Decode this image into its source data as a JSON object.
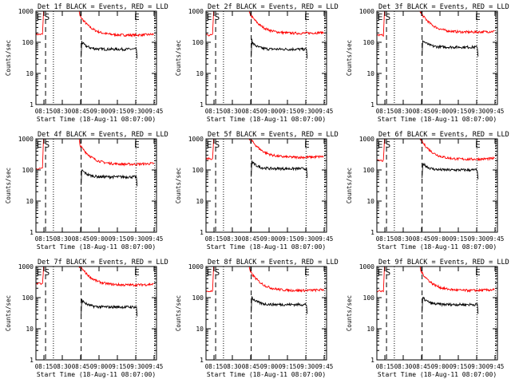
{
  "chart_data": [
    {
      "type": "line",
      "title": "Det 1f BLACK = Events, RED = LLD",
      "xlabel": "Start Time (18-Aug-11 08:07:00)",
      "ylabel": "Counts/sec",
      "yscale": "log",
      "ylim": [
        1,
        1000
      ],
      "xticks": [
        "08:15",
        "08:30",
        "08:45",
        "09:00",
        "09:15",
        "09:30",
        "09:45"
      ],
      "yticks": [
        "1",
        "10",
        "100",
        "1000"
      ],
      "markers": [
        "E",
        "S",
        "E"
      ],
      "series": [
        {
          "color": "#ff0000",
          "level_after": 200,
          "level_before": 180,
          "spike": 1000
        },
        {
          "color": "#000000",
          "level_after": 60,
          "spike": 110
        }
      ]
    },
    {
      "type": "line",
      "title": "Det 2f BLACK = Events, RED = LLD",
      "xlabel": "Start Time (18-Aug-11 08:07:00)",
      "ylabel": "Counts/sec",
      "yscale": "log",
      "ylim": [
        1,
        1000
      ],
      "xticks": [
        "08:15",
        "08:30",
        "08:45",
        "09:00",
        "09:15",
        "09:30",
        "09:45"
      ],
      "yticks": [
        "1",
        "10",
        "100",
        "1000"
      ],
      "markers": [
        "E",
        "S",
        "E"
      ],
      "series": [
        {
          "color": "#ff0000",
          "level_after": 230,
          "level_before": 170,
          "spike": 1000
        },
        {
          "color": "#000000",
          "level_after": 60,
          "spike": 130
        }
      ]
    },
    {
      "type": "line",
      "title": "Det 3f BLACK = Events, RED = LLD",
      "xlabel": "Start Time (18-Aug-11 08:07:00)",
      "ylabel": "Counts/sec",
      "yscale": "log",
      "ylim": [
        1,
        1000
      ],
      "xticks": [
        "08:15",
        "08:30",
        "08:45",
        "09:00",
        "09:15",
        "09:30",
        "09:45"
      ],
      "yticks": [
        "1",
        "10",
        "100",
        "1000"
      ],
      "markers": [
        "E",
        "S",
        "E"
      ],
      "series": [
        {
          "color": "#ff0000",
          "level_after": 250,
          "level_before": 170,
          "spike": 1000
        },
        {
          "color": "#000000",
          "level_after": 70,
          "spike": 115
        }
      ]
    },
    {
      "type": "line",
      "title": "Det 4f BLACK = Events, RED = LLD",
      "xlabel": "Start Time (18-Aug-11 08:07:00)",
      "ylabel": "Counts/sec",
      "yscale": "log",
      "ylim": [
        1,
        1000
      ],
      "xticks": [
        "08:15",
        "08:30",
        "08:45",
        "09:00",
        "09:15",
        "09:30",
        "09:45"
      ],
      "yticks": [
        "1",
        "10",
        "100",
        "1000"
      ],
      "markers": [
        "E",
        "S",
        "E"
      ],
      "series": [
        {
          "color": "#ff0000",
          "level_after": 180,
          "level_before": 110,
          "spike": 1000
        },
        {
          "color": "#000000",
          "level_after": 60,
          "spike": 100
        }
      ]
    },
    {
      "type": "line",
      "title": "Det 5f BLACK = Events, RED = LLD",
      "xlabel": "Start Time (18-Aug-11 08:07:00)",
      "ylabel": "Counts/sec",
      "yscale": "log",
      "ylim": [
        1,
        1000
      ],
      "xticks": [
        "08:15",
        "08:30",
        "08:45",
        "09:00",
        "09:15",
        "09:30",
        "09:45"
      ],
      "yticks": [
        "1",
        "10",
        "100",
        "1000"
      ],
      "markers": [
        "E",
        "S",
        "E"
      ],
      "series": [
        {
          "color": "#ff0000",
          "level_after": 300,
          "level_before": 230,
          "spike": 1000
        },
        {
          "color": "#000000",
          "level_after": 110,
          "spike": 200
        }
      ]
    },
    {
      "type": "line",
      "title": "Det 6f BLACK = Events, RED = LLD",
      "xlabel": "Start Time (18-Aug-11 08:07:00)",
      "ylabel": "Counts/sec",
      "yscale": "log",
      "ylim": [
        1,
        1000
      ],
      "xticks": [
        "08:15",
        "08:30",
        "08:45",
        "09:00",
        "09:15",
        "09:30",
        "09:45"
      ],
      "yticks": [
        "1",
        "10",
        "100",
        "1000"
      ],
      "markers": [
        "E",
        "S",
        "E"
      ],
      "series": [
        {
          "color": "#ff0000",
          "level_after": 260,
          "level_before": 200,
          "spike": 1000
        },
        {
          "color": "#000000",
          "level_after": 100,
          "spike": 140
        }
      ]
    },
    {
      "type": "line",
      "title": "Det 7f BLACK = Events, RED = LLD",
      "xlabel": "Start Time (18-Aug-11 08:07:00)",
      "ylabel": "Counts/sec",
      "yscale": "log",
      "ylim": [
        1,
        1000
      ],
      "xticks": [
        "08:15",
        "08:30",
        "08:45",
        "09:00",
        "09:15",
        "09:30",
        "09:45"
      ],
      "yticks": [
        "1",
        "10",
        "100",
        "1000"
      ],
      "markers": [
        "E",
        "S",
        "E"
      ],
      "series": [
        {
          "color": "#ff0000",
          "level_after": 300,
          "level_before": 280,
          "spike": 1000
        },
        {
          "color": "#000000",
          "level_after": 50,
          "spike": 90
        }
      ]
    },
    {
      "type": "line",
      "title": "Det 8f BLACK = Events, RED = LLD",
      "xlabel": "Start Time (18-Aug-11 08:07:00)",
      "ylabel": "Counts/sec",
      "yscale": "log",
      "ylim": [
        1,
        1000
      ],
      "xticks": [
        "08:15",
        "08:30",
        "08:45",
        "09:00",
        "09:15",
        "09:30",
        "09:45"
      ],
      "yticks": [
        "1",
        "10",
        "100",
        "1000"
      ],
      "markers": [
        "E",
        "S",
        "E"
      ],
      "series": [
        {
          "color": "#ff0000",
          "level_after": 200,
          "level_before": 160,
          "spike": 1000
        },
        {
          "color": "#000000",
          "level_after": 60,
          "spike": 110
        }
      ]
    },
    {
      "type": "line",
      "title": "Det 9f BLACK = Events, RED = LLD",
      "xlabel": "Start Time (18-Aug-11 08:07:00)",
      "ylabel": "Counts/sec",
      "yscale": "log",
      "ylim": [
        1,
        1000
      ],
      "xticks": [
        "08:15",
        "08:30",
        "08:45",
        "09:00",
        "09:15",
        "09:30",
        "09:45"
      ],
      "yticks": [
        "1",
        "10",
        "100",
        "1000"
      ],
      "markers": [
        "E",
        "S",
        "E"
      ],
      "series": [
        {
          "color": "#ff0000",
          "level_after": 200,
          "level_before": 160,
          "spike": 1000
        },
        {
          "color": "#000000",
          "level_after": 60,
          "spike": 100
        }
      ]
    }
  ]
}
